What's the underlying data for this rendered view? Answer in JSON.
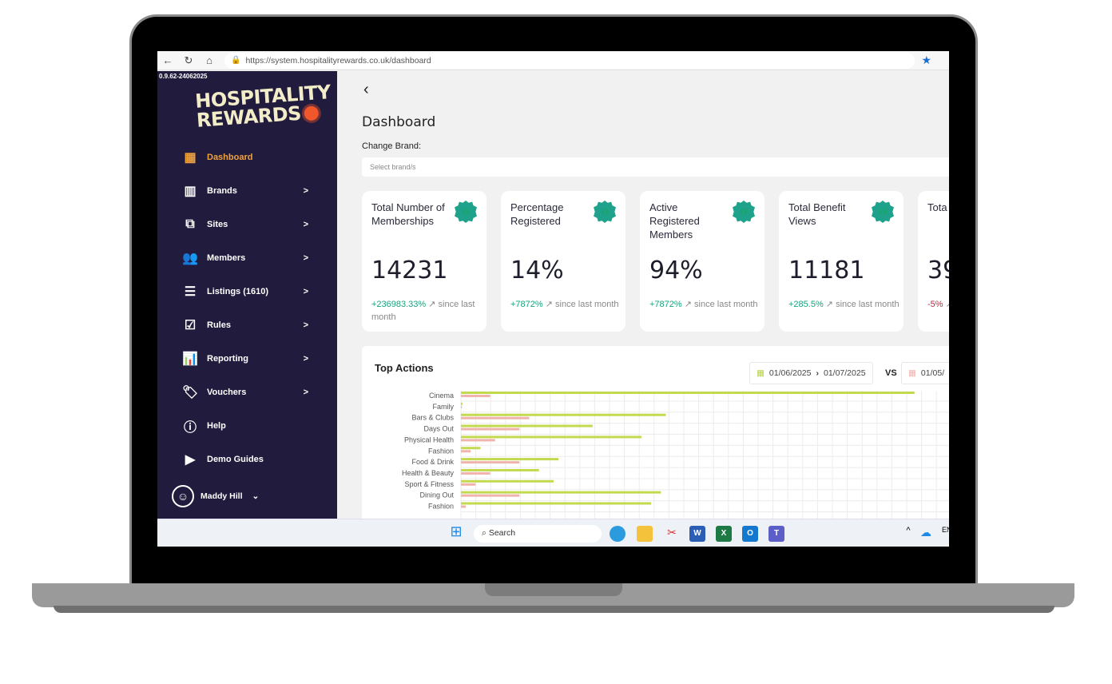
{
  "browser": {
    "url": "https://system.hospitalityrewards.co.uk/dashboard"
  },
  "sidebar": {
    "version": "0.9.62-24062025",
    "logo_text": "HOSPITALITY REWARDS",
    "items": [
      {
        "label": "Dashboard",
        "icon": "grid-icon",
        "active": true
      },
      {
        "label": "Brands",
        "icon": "buildings-icon"
      },
      {
        "label": "Sites",
        "icon": "sitemap-icon"
      },
      {
        "label": "Members",
        "icon": "users-icon"
      },
      {
        "label": "Listings (1610)",
        "icon": "list-icon"
      },
      {
        "label": "Rules",
        "icon": "checklist-icon"
      },
      {
        "label": "Reporting",
        "icon": "chart-icon"
      },
      {
        "label": "Vouchers",
        "icon": "tags-icon"
      },
      {
        "label": "Help",
        "icon": "info-icon"
      },
      {
        "label": "Demo Guides",
        "icon": "play-icon"
      }
    ],
    "user": "Maddy Hill"
  },
  "main": {
    "title": "Dashboard",
    "change_brand_label": "Change Brand:",
    "brand_placeholder": "Select brand/s",
    "cards": [
      {
        "title": "Total Number of Memberships",
        "value": "14231",
        "change": "+236983.33%",
        "suffix": "since last month",
        "trend": "up"
      },
      {
        "title": "Percentage Registered",
        "value": "14%",
        "change": "+7872%",
        "suffix": "since last month",
        "trend": "up"
      },
      {
        "title": "Active Registered Members",
        "value": "94%",
        "change": "+7872%",
        "suffix": "since last month",
        "trend": "up"
      },
      {
        "title": "Total Benefit Views",
        "value": "11181",
        "change": "+285.5%",
        "suffix": "since last month",
        "trend": "up"
      },
      {
        "title": "Tota Rede",
        "value": "39",
        "change": "-5%",
        "suffix": "",
        "trend": "down"
      }
    ],
    "top_actions": {
      "title": "Top Actions",
      "range1_start": "01/06/2025",
      "range1_end": "01/07/2025",
      "vs": "VS",
      "range2_start": "01/05/"
    }
  },
  "chart_data": {
    "type": "bar",
    "orientation": "horizontal",
    "categories": [
      "Cinema",
      "Family",
      "Bars & Clubs",
      "Days Out",
      "Physical Health",
      "Fashion",
      "Food & Drink",
      "Health & Beauty",
      "Sport & Fitness",
      "Dining Out",
      "Fashion"
    ],
    "series": [
      {
        "color": "#c3d94e",
        "values": [
          93,
          0.3,
          42,
          27,
          37,
          4,
          20,
          16,
          19,
          41,
          39
        ]
      },
      {
        "color": "#f1b3ad",
        "values": [
          6,
          0.2,
          14,
          12,
          7,
          2,
          12,
          6,
          3,
          12,
          1
        ]
      }
    ],
    "xlim": [
      0,
      100
    ],
    "grid": true
  },
  "taskbar": {
    "search": "Search",
    "lang": "EN"
  },
  "colors": {
    "sidebar": "#211b3d",
    "accent": "#f0a23a",
    "badge": "#1fa28b",
    "positive": "#1aa37c",
    "negative": "#c0283f"
  }
}
